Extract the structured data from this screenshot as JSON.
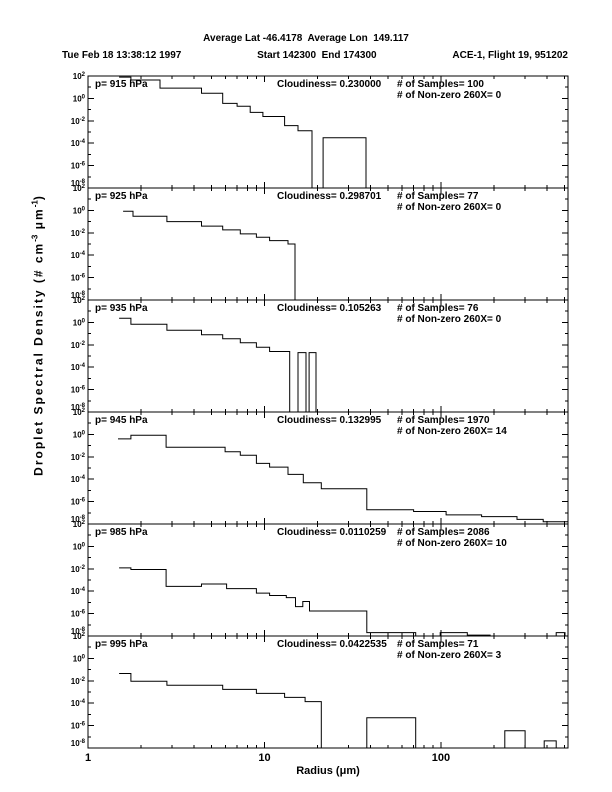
{
  "header": {
    "line1": "Average Lat -46.4178  Average Lon  149.117",
    "line2_left": "Tue Feb 18 13:38:12 1997",
    "line2_mid": "Start 142300  End 174300",
    "line2_right": "ACE-1, Flight 19, 951202"
  },
  "axes": {
    "x_label": "Radius (μm)",
    "x_tick_labels": [
      "1",
      "10",
      "100"
    ],
    "y_tick_base": "10",
    "y_label_exponents": [
      2,
      0,
      -2,
      -4,
      -6,
      -8
    ],
    "y_axis_title_parts": {
      "main1": "Droplet Spectral Density (# cm",
      "sup1": "-3",
      "main2": " μm",
      "sup2": "-1",
      "main3": ")"
    }
  },
  "chart_data": {
    "type": "step-histogram",
    "layout": "6 vertically stacked panels sharing a log x-axis",
    "x_scale": "log",
    "y_scale": "log",
    "xlim": [
      1,
      525
    ],
    "ylim_per_panel": [
      1e-08,
      100
    ],
    "x_major_ticks": [
      1,
      10,
      100
    ],
    "xlabel": "Radius (μm)",
    "ylabel": "Droplet Spectral Density (# cm^-3 μm^-1)",
    "panels": [
      {
        "pressure_hpa": 915,
        "cloudiness": 0.23,
        "samples": 100,
        "non_zero_260x": 0,
        "labels": {
          "pressure": "p= 915 hPa",
          "cloudiness": "Cloudiness= 0.230000",
          "samples": "# of Samples= 100",
          "nonzero": "# of Non-zero 260X= 0"
        },
        "runs": [
          {
            "edges": [
              1.5,
              1.75,
              2.56,
              4.4,
              5.8,
              7.0,
              8.3,
              9.8,
              13,
              15.5,
              18.6
            ],
            "values": [
              80,
              44,
              8.3,
              2.9,
              0.36,
              0.2,
              0.056,
              0.024,
              0.0037,
              0.0013
            ],
            "open_left": true,
            "open_right": false
          },
          {
            "edges": [
              21.5,
              37.6
            ],
            "values": [
              0.00031
            ],
            "open_left": false,
            "open_right": false
          }
        ]
      },
      {
        "pressure_hpa": 925,
        "cloudiness": 0.298701,
        "samples": 77,
        "non_zero_260x": 0,
        "labels": {
          "pressure": "p= 925 hPa",
          "cloudiness": "Cloudiness= 0.298701",
          "samples": "# of Samples= 77",
          "nonzero": "# of Non-zero 260X= 0"
        },
        "runs": [
          {
            "edges": [
              1.58,
              1.8,
              2.8,
              4.4,
              5.8,
              7.3,
              9.0,
              10.7,
              13.6,
              14.9
            ],
            "values": [
              0.83,
              0.3,
              0.1,
              0.04,
              0.018,
              0.008,
              0.004,
              0.002,
              0.001
            ],
            "open_left": true,
            "open_right": false
          }
        ]
      },
      {
        "pressure_hpa": 935,
        "cloudiness": 0.105263,
        "samples": 76,
        "non_zero_260x": 0,
        "labels": {
          "pressure": "p= 935 hPa",
          "cloudiness": "Cloudiness= 0.105263",
          "samples": "# of Samples= 76",
          "nonzero": "# of Non-zero 260X= 0"
        },
        "runs": [
          {
            "edges": [
              1.5,
              1.75,
              2.8,
              4.4,
              5.8,
              7.3,
              9.0,
              10.7,
              13.9
            ],
            "values": [
              2.3,
              0.68,
              0.2,
              0.08,
              0.035,
              0.015,
              0.006,
              0.0025
            ],
            "open_left": true,
            "open_right": false
          },
          {
            "edges": [
              15.5,
              17.2
            ],
            "values": [
              0.002
            ],
            "open_left": false,
            "open_right": false
          },
          {
            "edges": [
              17.9,
              19.6
            ],
            "values": [
              0.002
            ],
            "open_left": false,
            "open_right": false
          }
        ]
      },
      {
        "pressure_hpa": 945,
        "cloudiness": 0.132995,
        "samples": 1970,
        "non_zero_260x": 14,
        "labels": {
          "pressure": "p= 945 hPa",
          "cloudiness": "Cloudiness= 0.132995",
          "samples": "# of Samples= 1970",
          "nonzero": "# of Non-zero 260X= 14"
        },
        "runs": [
          {
            "edges": [
              1.48,
              1.75,
              2.77,
              5.98,
              7.3,
              9.0,
              10.7,
              13.6,
              16.6,
              21,
              38,
              70,
              107,
              170,
              270,
              380,
              525
            ],
            "values": [
              0.4,
              0.85,
              0.07,
              0.028,
              0.014,
              0.0026,
              0.0012,
              0.00027,
              4.8e-05,
              1.4e-05,
              1.9e-07,
              1.3e-07,
              6.5e-08,
              4.6e-08,
              2.6e-08,
              1.6e-08
            ],
            "open_left": true,
            "open_right": true
          }
        ]
      },
      {
        "pressure_hpa": 985,
        "cloudiness": 0.0110259,
        "samples": 2086,
        "non_zero_260x": 10,
        "labels": {
          "pressure": "p= 985 hPa",
          "cloudiness": "Cloudiness= 0.0110259",
          "samples": "# of Samples= 2086",
          "nonzero": "# of Non-zero 260X= 10"
        },
        "runs": [
          {
            "edges": [
              1.5,
              1.75,
              2.77,
              4.4,
              6.1,
              9.0,
              10.7,
              13.3,
              15.0,
              16.5,
              18.0,
              38,
              72
            ],
            "values": [
              0.012,
              0.0086,
              0.00027,
              0.00044,
              0.00017,
              6.7e-05,
              4.1e-05,
              2.7e-05,
              4.2e-06,
              1.2e-05,
              1.7e-06,
              2e-08
            ],
            "open_left": true,
            "open_right": false
          },
          {
            "edges": [
              99,
              141,
              190
            ],
            "values": [
              2e-08,
              1.2e-08
            ],
            "open_left": false,
            "open_right": false
          },
          {
            "edges": [
              233,
              274
            ],
            "values": [
              1e-08
            ],
            "open_left": false,
            "open_right": false
          },
          {
            "edges": [
              450,
              505
            ],
            "values": [
              2e-08
            ],
            "open_left": false,
            "open_right": false
          }
        ]
      },
      {
        "pressure_hpa": 995,
        "cloudiness": 0.0422535,
        "samples": 71,
        "non_zero_260x": 3,
        "labels": {
          "pressure": "p= 995 hPa",
          "cloudiness": "Cloudiness= 0.0422535",
          "samples": "# of Samples= 71",
          "nonzero": "# of Non-zero 260X= 3"
        },
        "runs": [
          {
            "edges": [
              1.5,
              1.75,
              2.8,
              5.8,
              9.0,
              13,
              17,
              21
            ],
            "values": [
              0.045,
              0.0092,
              0.004,
              0.0017,
              0.00075,
              0.00033,
              0.00014
            ],
            "open_left": true,
            "open_right": false
          },
          {
            "edges": [
              38,
              72
            ],
            "values": [
              5.1e-06
            ],
            "open_left": false,
            "open_right": false
          },
          {
            "edges": [
              230,
              300
            ],
            "values": [
              3.5e-07
            ],
            "open_left": false,
            "open_right": false
          },
          {
            "edges": [
              385,
              450
            ],
            "values": [
              4.3e-08
            ],
            "open_left": false,
            "open_right": false
          }
        ]
      }
    ]
  }
}
